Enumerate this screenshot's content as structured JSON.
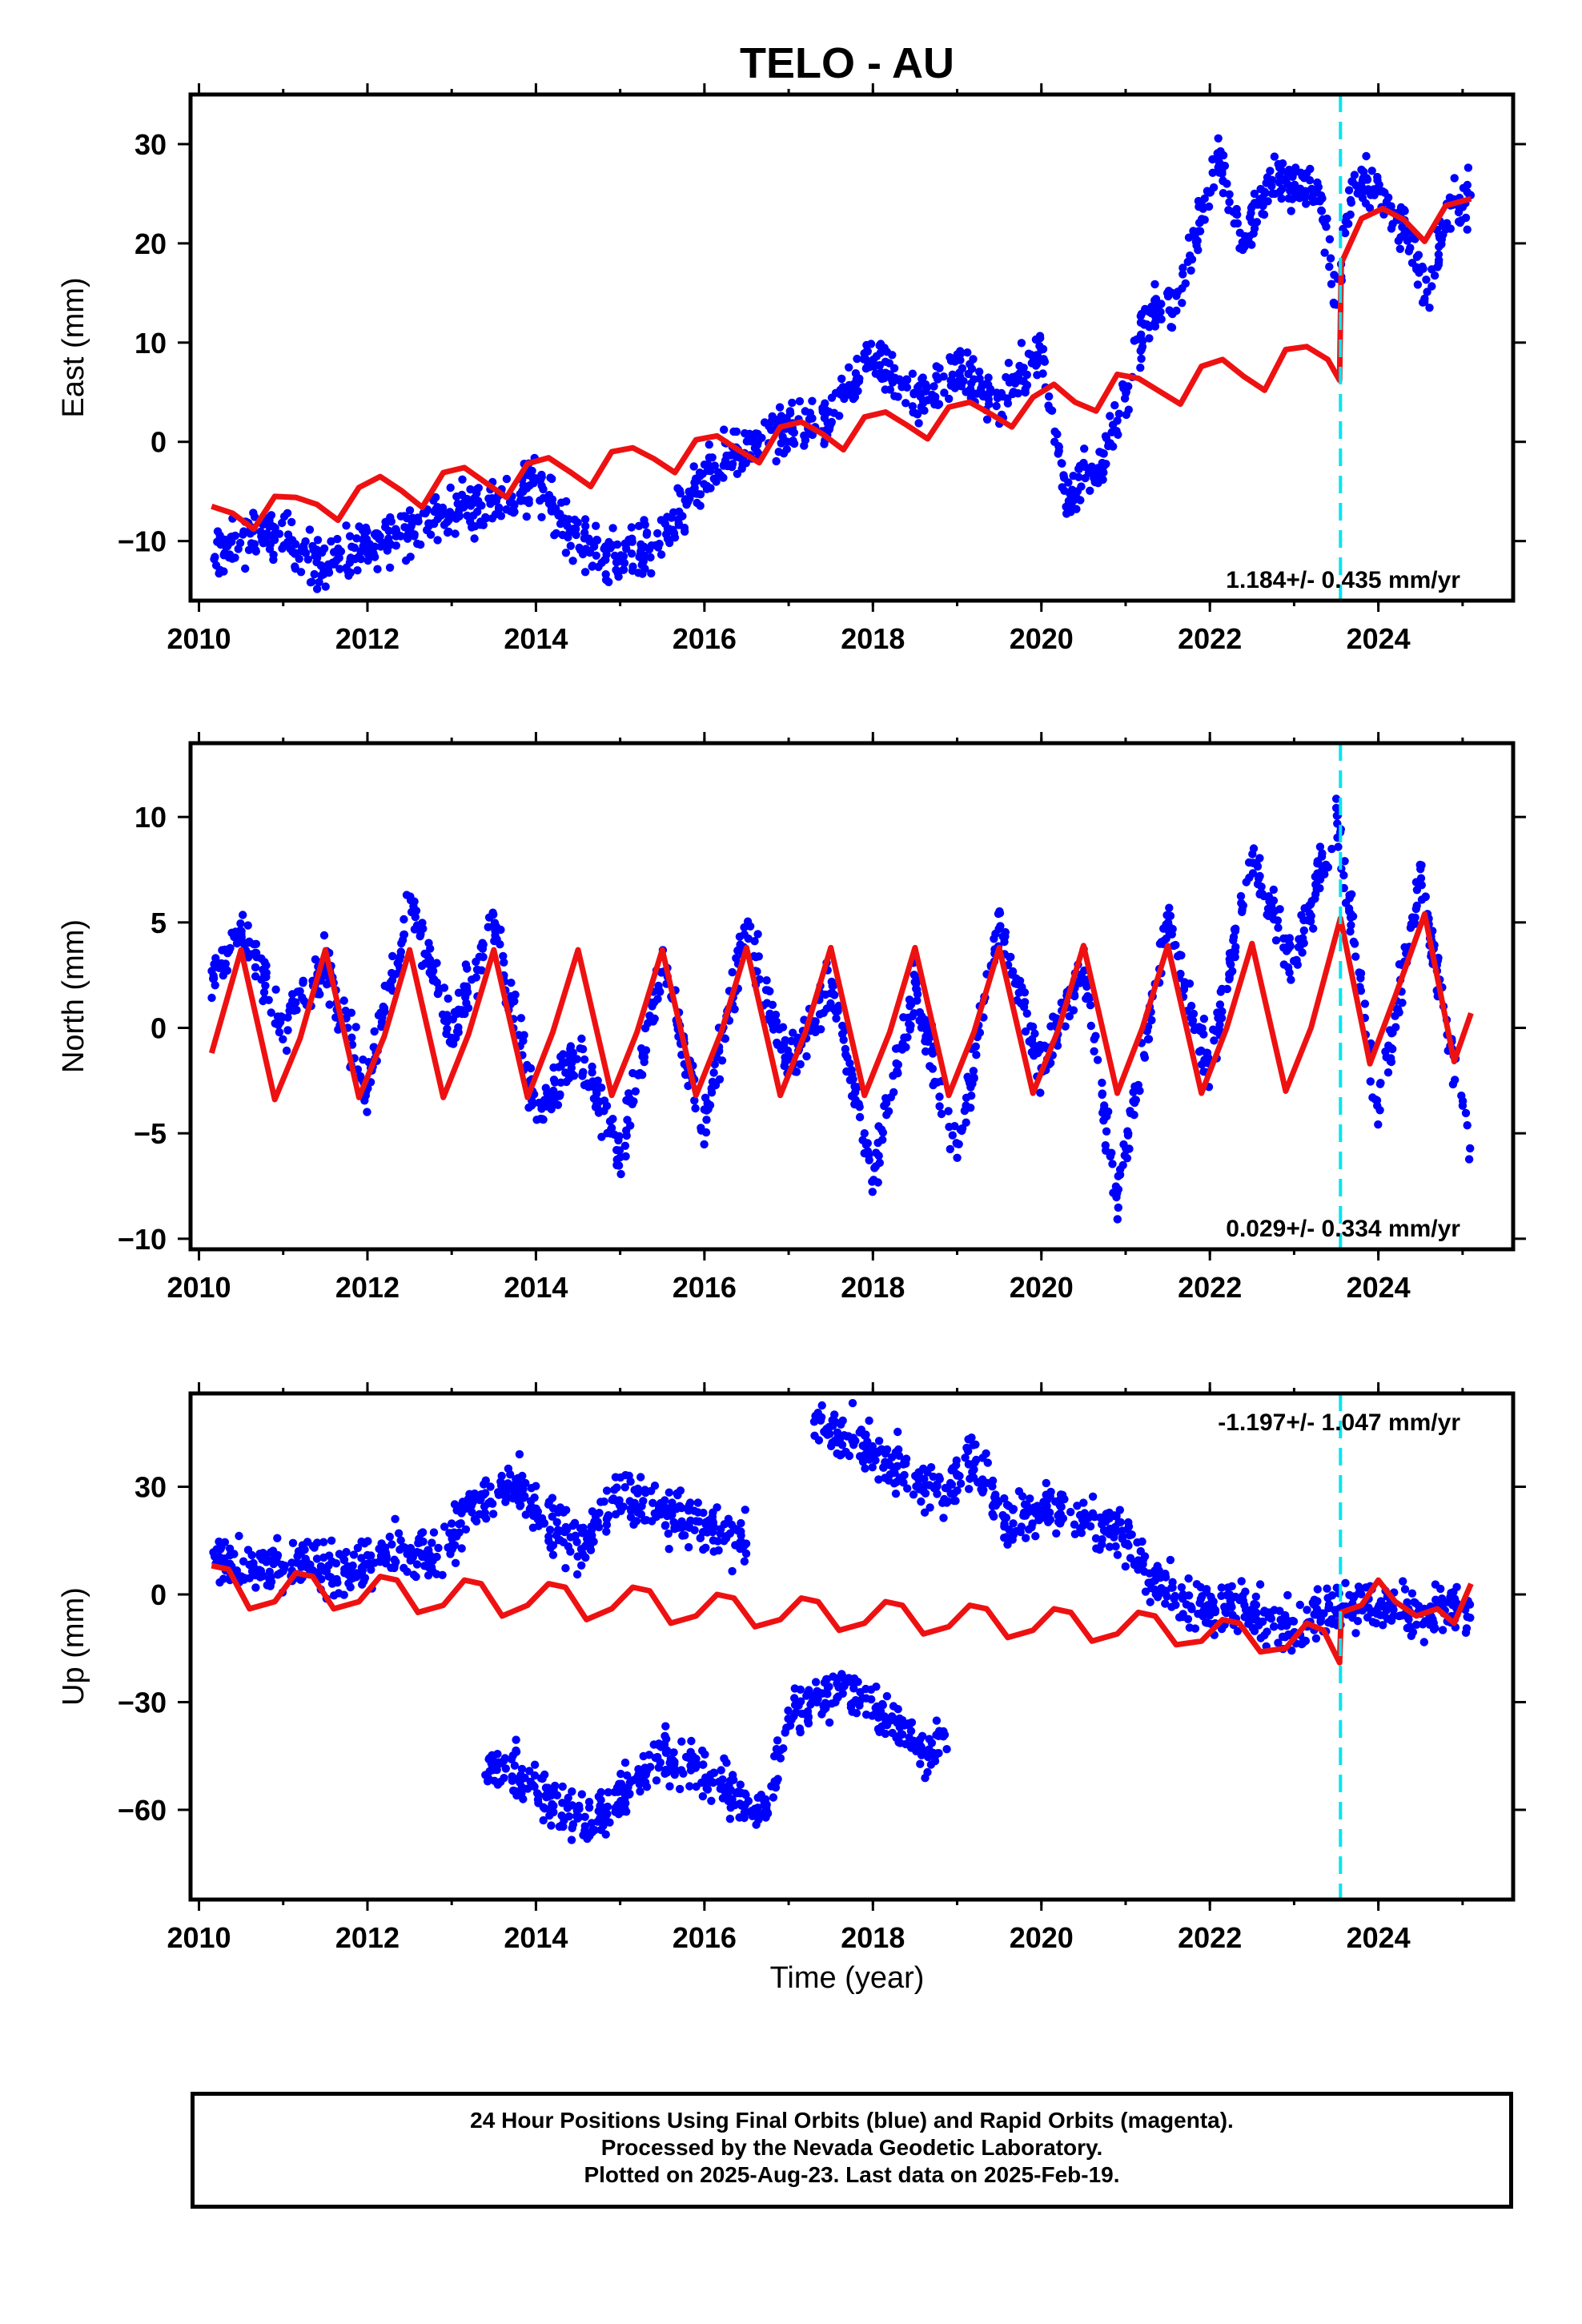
{
  "title": "TELO - AU",
  "xlabel": "Time (year)",
  "colors": {
    "final": "#0000ff",
    "model": "#ee1111",
    "offset": "#00e5f0",
    "rapid": "#ff00ff"
  },
  "footer": {
    "line1": "24 Hour Positions Using Final Orbits (blue) and Rapid Orbits (magenta).",
    "line2": "Processed by the Nevada Geodetic Laboratory.",
    "line3": "Plotted on 2025-Aug-23. Last data on 2025-Feb-19."
  },
  "chart_data": [
    {
      "type": "scatter",
      "ylabel": "East (mm)",
      "velocity_label": "1.184+/- 0.435 mm/yr",
      "xlim": [
        2009.9,
        2025.6
      ],
      "ylim": [
        -16,
        35
      ],
      "xticks": [
        2010,
        2012,
        2014,
        2016,
        2018,
        2020,
        2022,
        2024
      ],
      "yticks": [
        -10,
        0,
        10,
        20,
        30
      ],
      "offset_epoch": 2023.55,
      "series": [
        {
          "style": "points",
          "color": "#0000ff",
          "x": [
            2010.15,
            2010.5,
            2011.0,
            2011.5,
            2012.0,
            2012.5,
            2013.0,
            2013.5,
            2014.0,
            2014.5,
            2015.0,
            2015.5,
            2016.0,
            2016.5,
            2017.0,
            2017.5,
            2018.0,
            2018.5,
            2019.0,
            2019.5,
            2020.0,
            2020.3,
            2020.7,
            2021.0,
            2021.3,
            2021.6,
            2021.9,
            2022.1,
            2022.4,
            2022.7,
            2023.0,
            2023.3,
            2023.5,
            2023.7,
            2024.0,
            2024.3,
            2024.6,
            2024.8,
            2025.1
          ],
          "y": [
            -12,
            -10,
            -9,
            -13,
            -10,
            -9,
            -7,
            -6,
            -4,
            -10,
            -12,
            -10,
            -3,
            -1,
            1,
            2,
            9,
            4,
            7,
            4,
            9,
            -6,
            -2,
            5,
            13,
            14,
            23,
            29,
            20,
            26,
            26,
            25,
            14,
            27,
            25,
            22,
            14,
            23,
            25
          ]
        },
        {
          "style": "line",
          "color": "#ee1111",
          "x": [
            2010.15,
            2010.4,
            2010.65,
            2010.9,
            2011.15,
            2011.4,
            2011.65,
            2011.9,
            2012.15,
            2012.4,
            2012.65,
            2012.9,
            2013.15,
            2013.4,
            2013.65,
            2013.9,
            2014.15,
            2014.4,
            2014.65,
            2014.9,
            2015.15,
            2015.4,
            2015.65,
            2015.9,
            2016.15,
            2016.4,
            2016.65,
            2016.9,
            2017.15,
            2017.4,
            2017.65,
            2017.9,
            2018.15,
            2018.4,
            2018.65,
            2018.9,
            2019.15,
            2019.4,
            2019.65,
            2019.9,
            2020.15,
            2020.4,
            2020.65,
            2020.9,
            2021.15,
            2021.4,
            2021.65,
            2021.9,
            2022.15,
            2022.4,
            2022.65,
            2022.9,
            2023.15,
            2023.4,
            2023.54,
            2023.56,
            2023.8,
            2024.05,
            2024.3,
            2024.55,
            2024.8,
            2025.1
          ],
          "y": [
            -6.5,
            -7.2,
            -8.8,
            -5.5,
            -5.6,
            -6.3,
            -7.9,
            -4.6,
            -3.5,
            -4.9,
            -6.6,
            -3.1,
            -2.6,
            -4.1,
            -5.6,
            -2.2,
            -1.6,
            -3.0,
            -4.5,
            -1.0,
            -0.6,
            -1.7,
            -3.1,
            0.2,
            0.6,
            -0.8,
            -2.1,
            1.5,
            2.0,
            0.8,
            -0.8,
            2.5,
            3.0,
            1.7,
            0.3,
            3.5,
            4.0,
            2.8,
            1.5,
            4.5,
            5.8,
            4.0,
            3.1,
            6.8,
            6.4,
            5.1,
            3.8,
            7.6,
            8.3,
            6.6,
            5.2,
            9.3,
            9.6,
            8.3,
            6.2,
            18.0,
            22.5,
            23.5,
            22.4,
            20.2,
            23.8,
            24.5
          ]
        }
      ]
    },
    {
      "type": "scatter",
      "ylabel": "North (mm)",
      "velocity_label": "0.029+/- 0.334 mm/yr",
      "xlim": [
        2009.9,
        2025.6
      ],
      "ylim": [
        -10.5,
        13.5
      ],
      "xticks": [
        2010,
        2012,
        2014,
        2016,
        2018,
        2020,
        2022,
        2024
      ],
      "yticks": [
        -10,
        -5,
        0,
        5,
        10
      ],
      "offset_epoch": 2023.55,
      "series": [
        {
          "style": "points",
          "color": "#0000ff",
          "x": [
            2010.15,
            2010.5,
            2011.0,
            2011.5,
            2012.0,
            2012.5,
            2013.0,
            2013.5,
            2014.0,
            2014.5,
            2015.0,
            2015.5,
            2016.0,
            2016.5,
            2017.0,
            2017.5,
            2018.0,
            2018.5,
            2019.0,
            2019.5,
            2020.0,
            2020.5,
            2020.9,
            2021.5,
            2022.0,
            2022.5,
            2023.0,
            2023.5,
            2024.0,
            2024.5,
            2025.1
          ],
          "y": [
            2,
            5,
            0,
            3,
            -3,
            6,
            0,
            5,
            -4,
            -1,
            -6,
            3,
            -5,
            5,
            -2,
            2,
            -7,
            2,
            -6,
            5,
            -2,
            3,
            -8,
            5,
            -2,
            8,
            3,
            10,
            -4,
            7,
            -6
          ]
        },
        {
          "style": "line",
          "color": "#ee1111",
          "x": [
            2010.15,
            2010.5,
            2010.9,
            2011.2,
            2011.5,
            2011.9,
            2012.2,
            2012.5,
            2012.9,
            2013.2,
            2013.5,
            2013.9,
            2014.2,
            2014.5,
            2014.9,
            2015.2,
            2015.5,
            2015.9,
            2016.2,
            2016.5,
            2016.9,
            2017.2,
            2017.5,
            2017.9,
            2018.2,
            2018.5,
            2018.9,
            2019.2,
            2019.5,
            2019.9,
            2020.2,
            2020.5,
            2020.9,
            2021.2,
            2021.5,
            2021.9,
            2022.2,
            2022.5,
            2022.9,
            2023.2,
            2023.55,
            2023.9,
            2024.2,
            2024.55,
            2024.9,
            2025.1
          ],
          "y": [
            -1.2,
            3.7,
            -3.4,
            -0.5,
            3.7,
            -3.3,
            -0.4,
            3.7,
            -3.3,
            -0.3,
            3.7,
            -3.3,
            -0.2,
            3.7,
            -3.2,
            -0.2,
            3.7,
            -3.2,
            -0.2,
            3.8,
            -3.2,
            -0.2,
            3.8,
            -3.2,
            -0.2,
            3.8,
            -3.2,
            -0.2,
            3.8,
            -3.1,
            -0.1,
            3.9,
            -3.1,
            0,
            3.9,
            -3.1,
            0,
            4.0,
            -3.0,
            0,
            5.2,
            -1.7,
            1.5,
            5.4,
            -1.6,
            0.7
          ]
        }
      ]
    },
    {
      "type": "scatter",
      "ylabel": "Up (mm)",
      "velocity_label": "-1.197+/- 1.047 mm/yr",
      "xlabel": "Time (year)",
      "xlim": [
        2009.9,
        2025.6
      ],
      "ylim": [
        -85,
        56
      ],
      "xticks": [
        2010,
        2012,
        2014,
        2016,
        2018,
        2020,
        2022,
        2024
      ],
      "yticks": [
        -60,
        -30,
        0,
        30
      ],
      "offset_epoch": 2023.55,
      "series": [
        {
          "style": "points",
          "color": "#0000ff",
          "x": [
            2010.15,
            2010.6,
            2011.2,
            2011.8,
            2012.3,
            2012.9,
            2013.2,
            2013.5,
            2013.8,
            2014.2,
            2014.5,
            2015.0,
            2015.3,
            2015.7,
            2016.1,
            2016.5,
            2013.4,
            2013.8,
            2014.3,
            2014.7,
            2015.0,
            2015.5,
            2015.9,
            2016.3,
            2016.7,
            2017.0,
            2017.3,
            2017.6,
            2017.9,
            2018.3,
            2018.7,
            2018.9,
            2017.3,
            2017.7,
            2018.1,
            2018.5,
            2018.8,
            2019.2,
            2019.6,
            2020.0,
            2020.5,
            2020.9,
            2021.3,
            2021.7,
            2022.1,
            2022.5,
            2022.9,
            2023.3,
            2023.6,
            2024.0,
            2024.4,
            2024.8,
            2025.1
          ],
          "y": [
            10,
            6,
            9,
            7,
            12,
            10,
            25,
            28,
            30,
            20,
            12,
            28,
            24,
            22,
            18,
            15,
            -48,
            -50,
            -60,
            -65,
            -55,
            -45,
            -50,
            -55,
            -60,
            -35,
            -30,
            -25,
            -28,
            -38,
            -45,
            -35,
            48,
            44,
            38,
            32,
            28,
            38,
            20,
            24,
            22,
            19,
            5,
            -2,
            -5,
            -3,
            -10,
            -5,
            -2,
            -3,
            -5,
            -4,
            -6
          ]
        },
        {
          "style": "line",
          "color": "#ee1111",
          "x": [
            2010.15,
            2010.35,
            2010.6,
            2010.9,
            2011.15,
            2011.35,
            2011.6,
            2011.9,
            2012.15,
            2012.35,
            2012.6,
            2012.9,
            2013.15,
            2013.35,
            2013.6,
            2013.9,
            2014.15,
            2014.35,
            2014.6,
            2014.9,
            2015.15,
            2015.35,
            2015.6,
            2015.9,
            2016.15,
            2016.35,
            2016.6,
            2016.9,
            2017.15,
            2017.35,
            2017.6,
            2017.9,
            2018.15,
            2018.35,
            2018.6,
            2018.9,
            2019.15,
            2019.35,
            2019.6,
            2019.9,
            2020.15,
            2020.35,
            2020.6,
            2020.9,
            2021.15,
            2021.35,
            2021.6,
            2021.9,
            2022.15,
            2022.35,
            2022.6,
            2022.9,
            2023.15,
            2023.35,
            2023.54,
            2023.56,
            2023.8,
            2024.0,
            2024.2,
            2024.45,
            2024.7,
            2024.9,
            2025.1
          ],
          "y": [
            8,
            7,
            -4,
            -2,
            6,
            5,
            -4,
            -2,
            5,
            4,
            -5,
            -3,
            4,
            3,
            -6,
            -3,
            3,
            2,
            -7,
            -4,
            2,
            1,
            -8,
            -6,
            0,
            -1,
            -9,
            -7,
            -1,
            -2,
            -10,
            -8,
            -2,
            -3,
            -11,
            -9,
            -3,
            -4,
            -12,
            -10,
            -4,
            -5,
            -13,
            -11,
            -5,
            -6,
            -14,
            -13,
            -7,
            -8,
            -16,
            -15,
            -8,
            -10,
            -19,
            -5,
            -3,
            4,
            -2,
            -6,
            -4,
            -8,
            3
          ]
        }
      ]
    }
  ]
}
